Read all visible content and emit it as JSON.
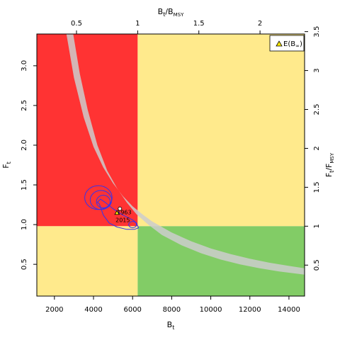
{
  "chart_data": {
    "type": "phase-plot",
    "x": {
      "label_main": "B",
      "label_sub": "t",
      "lim": [
        1100,
        14800
      ],
      "ticks": [
        2000,
        4000,
        6000,
        8000,
        10000,
        12000,
        14000
      ],
      "tick_labels": [
        "2000",
        "4000",
        "6000",
        "8000",
        "10000",
        "12000",
        "14000"
      ]
    },
    "y": {
      "label_main": "F",
      "label_sub": "t",
      "lim": [
        0.1,
        3.4
      ],
      "ticks": [
        0.5,
        1.0,
        1.5,
        2.0,
        2.5,
        3.0
      ],
      "tick_labels": [
        "0.5",
        "1.0",
        "1.5",
        "2.0",
        "2.5",
        "3.0"
      ]
    },
    "x_top": {
      "label_main": "B",
      "label_sub": "t",
      "label_div": "/",
      "label_main2": "B",
      "label_sub2": "MSY",
      "ticks_data": [
        3130,
        6260,
        9390,
        12520
      ],
      "tick_labels": [
        "0.5",
        "1",
        "1.5",
        "2"
      ]
    },
    "y_right": {
      "label_main": "F",
      "label_sub": "t",
      "label_div": "/",
      "label_main2": "F",
      "label_sub2": "MSY",
      "ticks_data": [
        0.49,
        0.98,
        1.47,
        1.96,
        2.45,
        2.94,
        3.43
      ],
      "tick_labels": [
        "0.5",
        "1",
        "1.5",
        "2",
        "2.5",
        "3",
        "3.5"
      ]
    },
    "reference": {
      "Bmsy": 6260,
      "Fmsy": 0.98
    },
    "zones": {
      "red": "#ff3333",
      "yellow": "#ffea8c",
      "green": "#82cc66"
    },
    "equilibrium_band": {
      "color": "#cccccc",
      "upper": [
        [
          2600,
          3.42
        ],
        [
          3000,
          2.85
        ],
        [
          3500,
          2.35
        ],
        [
          4000,
          1.98
        ],
        [
          4500,
          1.72
        ],
        [
          5000,
          1.52
        ],
        [
          5500,
          1.36
        ],
        [
          6000,
          1.23
        ],
        [
          6500,
          1.13
        ],
        [
          7000,
          1.04
        ],
        [
          8000,
          0.9
        ],
        [
          9000,
          0.79
        ],
        [
          10000,
          0.7
        ],
        [
          11000,
          0.63
        ],
        [
          12000,
          0.57
        ],
        [
          13000,
          0.52
        ],
        [
          14000,
          0.48
        ],
        [
          14800,
          0.45
        ]
      ],
      "lower": [
        [
          2950,
          3.42
        ],
        [
          3300,
          2.9
        ],
        [
          3700,
          2.45
        ],
        [
          4200,
          2.0
        ],
        [
          4700,
          1.68
        ],
        [
          5200,
          1.46
        ],
        [
          5700,
          1.28
        ],
        [
          6200,
          1.13
        ],
        [
          6800,
          1.0
        ],
        [
          7500,
          0.87
        ],
        [
          8500,
          0.74
        ],
        [
          9500,
          0.64
        ],
        [
          10500,
          0.56
        ],
        [
          11500,
          0.5
        ],
        [
          12500,
          0.45
        ],
        [
          13500,
          0.41
        ],
        [
          14800,
          0.37
        ]
      ]
    },
    "contours": [
      {
        "cx": 4250,
        "cy": 1.34,
        "rx": 700,
        "ry": 0.15,
        "rot": 0
      },
      {
        "cx": 4500,
        "cy": 1.29,
        "rx": 350,
        "ry": 0.08,
        "rot": 0
      },
      {
        "cx": 4380,
        "cy": 1.31,
        "rx": 550,
        "ry": 0.12,
        "rot": 0
      }
    ],
    "contour_outer": [
      [
        4300,
        1.26
      ],
      [
        4500,
        1.12
      ],
      [
        4800,
        1.02
      ],
      [
        5200,
        0.97
      ],
      [
        5700,
        0.94
      ],
      [
        6100,
        0.94
      ],
      [
        6300,
        0.96
      ],
      [
        6200,
        1.02
      ],
      [
        6000,
        1.06
      ],
      [
        5500,
        1.12
      ],
      [
        5000,
        1.2
      ],
      [
        4600,
        1.28
      ],
      [
        4350,
        1.32
      ],
      [
        4200,
        1.28
      ],
      [
        4300,
        1.26
      ]
    ],
    "contour_small": {
      "cx": 6000,
      "cy": 1.0,
      "rx": 200,
      "ry": 0.04
    },
    "points": [
      {
        "label": "1963",
        "x": 5350,
        "y": 1.2
      },
      {
        "label": "2015",
        "x": 5200,
        "y": 1.15
      }
    ],
    "legend": {
      "label_main": "E(B",
      "label_sub": "∞",
      "label_end": ")",
      "position": "top-right",
      "marker_color": "#ffea00"
    },
    "contour_color": "#3333ee"
  }
}
